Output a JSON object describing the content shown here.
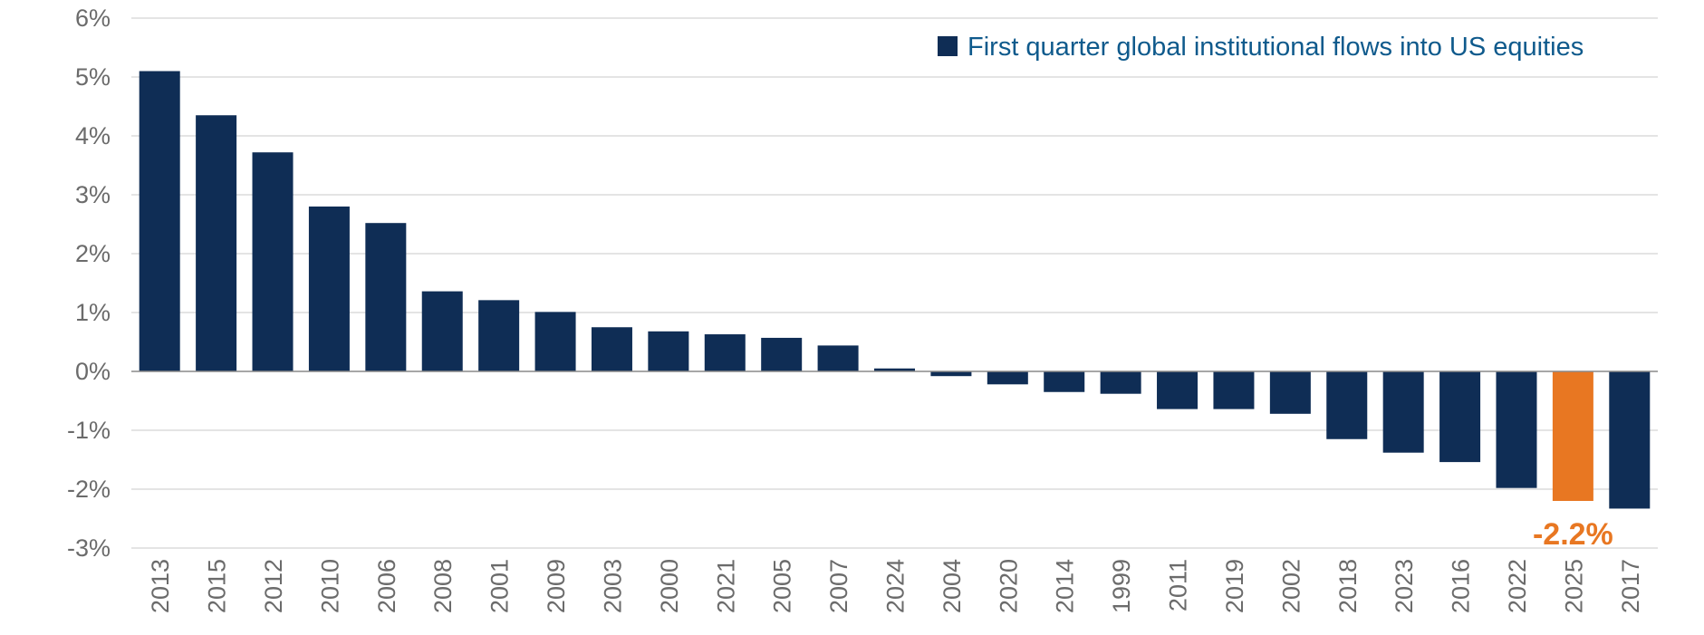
{
  "chart_data": {
    "type": "bar",
    "title": "",
    "xlabel": "",
    "ylabel": "",
    "ylim": [
      -3,
      6
    ],
    "ytick_values": [
      6,
      5,
      4,
      3,
      2,
      1,
      0,
      -1,
      -2,
      -3
    ],
    "ytick_labels": [
      "6%",
      "5%",
      "4%",
      "3%",
      "2%",
      "1%",
      "0%",
      "-1%",
      "-2%",
      "-3%"
    ],
    "grid": true,
    "legend_position": "top-right",
    "categories": [
      "2013",
      "2015",
      "2012",
      "2010",
      "2006",
      "2008",
      "2001",
      "2009",
      "2003",
      "2000",
      "2021",
      "2005",
      "2007",
      "2024",
      "2004",
      "2020",
      "2014",
      "1999",
      "2011",
      "2019",
      "2002",
      "2018",
      "2023",
      "2016",
      "2022",
      "2025",
      "2017"
    ],
    "series": [
      {
        "name": "First quarter global institutional flows into US equities",
        "values": [
          5.1,
          4.35,
          3.72,
          2.8,
          2.52,
          1.36,
          1.21,
          1.01,
          0.75,
          0.68,
          0.63,
          0.57,
          0.44,
          0.05,
          -0.08,
          -0.22,
          -0.35,
          -0.38,
          -0.64,
          -0.64,
          -0.72,
          -1.15,
          -1.38,
          -1.54,
          -1.98,
          -2.2,
          -2.33
        ]
      }
    ],
    "highlight": {
      "category": "2025",
      "label": "-2.2%"
    },
    "colors": {
      "bar": "#0f2d55",
      "highlight": "#e87722",
      "grid": "#c8c8c8",
      "axis_text": "#6b6b6b",
      "legend_text": "#0f5a8c"
    }
  }
}
